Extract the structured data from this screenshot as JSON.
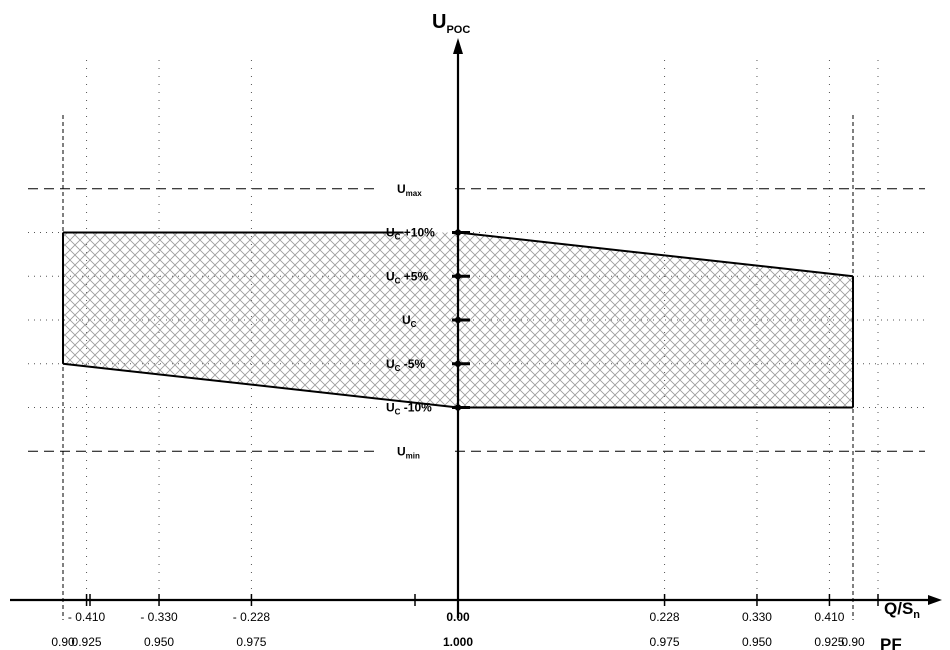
{
  "chart_data": {
    "type": "area",
    "title": "",
    "y_axis_title": {
      "main": "U",
      "sub": "POC"
    },
    "x_axis_title": {
      "main": "Q/S",
      "sub": "n"
    },
    "pf_axis_title": "PF",
    "x_ticks": [
      {
        "value": -0.436,
        "pf": "0.90",
        "q": ""
      },
      {
        "value": -0.41,
        "pf": "0.925",
        "q": "- 0.410"
      },
      {
        "value": -0.33,
        "pf": "0.950",
        "q": "- 0.330"
      },
      {
        "value": -0.228,
        "pf": "0.975",
        "q": "- 0.228"
      },
      {
        "value": 0.0,
        "pf": "1.000",
        "q": "0.00"
      },
      {
        "value": 0.228,
        "pf": "0.975",
        "q": "0.228"
      },
      {
        "value": 0.33,
        "pf": "0.950",
        "q": "0.330"
      },
      {
        "value": 0.41,
        "pf": "0.925",
        "q": "0.410"
      },
      {
        "value": 0.436,
        "pf": "0.90",
        "q": ""
      }
    ],
    "y_levels": [
      {
        "key": "max",
        "value": 15,
        "main": "U",
        "sub": "max",
        "suffix": "",
        "style": "dashed"
      },
      {
        "key": "p10",
        "value": 10,
        "main": "U",
        "sub": "C",
        "suffix": " +10%",
        "style": "dotted"
      },
      {
        "key": "p5",
        "value": 5,
        "main": "U",
        "sub": "C",
        "suffix": " +5%",
        "style": "dotted"
      },
      {
        "key": "c",
        "value": 0,
        "main": "U",
        "sub": "C",
        "suffix": "",
        "style": "dotted"
      },
      {
        "key": "m5",
        "value": -5,
        "main": "U",
        "sub": "C",
        "suffix": " -5%",
        "style": "dotted"
      },
      {
        "key": "m10",
        "value": -10,
        "main": "U",
        "sub": "C",
        "suffix": " -10%",
        "style": "dotted"
      },
      {
        "key": "min",
        "value": -15,
        "main": "U",
        "sub": "min",
        "suffix": "",
        "style": "dashed"
      }
    ],
    "region_left": [
      {
        "x": -0.436,
        "y": 10
      },
      {
        "x": 0.0,
        "y": 10
      },
      {
        "x": 0.0,
        "y": -10
      },
      {
        "x": -0.436,
        "y": -5
      }
    ],
    "region_right": [
      {
        "x": 0.0,
        "y": 10
      },
      {
        "x": 0.436,
        "y": 5
      },
      {
        "x": 0.436,
        "y": -10
      },
      {
        "x": 0.0,
        "y": -10
      }
    ],
    "grid": true,
    "colors": {
      "hatch": "#9a9a9a",
      "line": "#000000",
      "grid": "#555555"
    }
  }
}
